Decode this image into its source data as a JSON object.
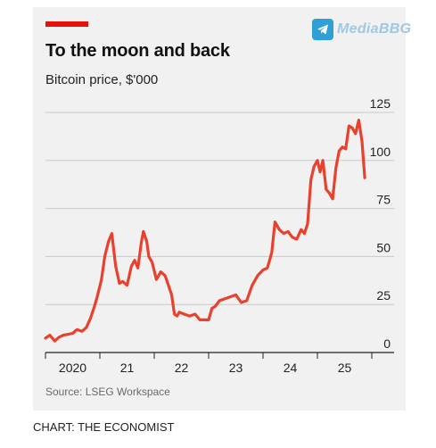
{
  "watermark": {
    "text": "MediaBBG",
    "icon": "telegram-icon"
  },
  "chart_data": {
    "type": "line",
    "title": "To the moon and back",
    "subtitle": "Bitcoin price, $'000",
    "source": "Source: LSEG Workspace",
    "xlabel": "",
    "ylabel": "",
    "x_tick_labels": [
      "2020",
      "21",
      "22",
      "23",
      "24",
      "25"
    ],
    "y_ticks": [
      0,
      25,
      50,
      75,
      100,
      125
    ],
    "ylim": [
      0,
      125
    ],
    "xlim": [
      2020.0,
      2026.0
    ],
    "grid": true,
    "series": [
      {
        "color": "#e8412e",
        "x": [
          2020.0,
          2020.08,
          2020.17,
          2020.25,
          2020.33,
          2020.42,
          2020.5,
          2020.58,
          2020.67,
          2020.75,
          2020.83,
          2020.9,
          2020.96,
          2021.03,
          2021.09,
          2021.16,
          2021.22,
          2021.29,
          2021.36,
          2021.42,
          2021.5,
          2021.58,
          2021.64,
          2021.7,
          2021.76,
          2021.8,
          2021.86,
          2021.9,
          2021.96,
          2022.04,
          2022.12,
          2022.2,
          2022.26,
          2022.32,
          2022.37,
          2022.42,
          2022.46,
          2022.55,
          2022.65,
          2022.75,
          2022.84,
          2022.92,
          2023.0,
          2023.06,
          2023.12,
          2023.2,
          2023.3,
          2023.4,
          2023.5,
          2023.6,
          2023.7,
          2023.8,
          2023.9,
          2024.0,
          2024.08,
          2024.16,
          2024.22,
          2024.3,
          2024.38,
          2024.46,
          2024.54,
          2024.62,
          2024.7,
          2024.76,
          2024.82,
          2024.88,
          2024.94,
          2025.0,
          2025.05,
          2025.1,
          2025.16,
          2025.22,
          2025.28,
          2025.34,
          2025.4,
          2025.46,
          2025.52,
          2025.58,
          2025.64,
          2025.7,
          2025.76,
          2025.82,
          2025.87
        ],
        "values": [
          7.5,
          9,
          6,
          8,
          9,
          9.5,
          10,
          12,
          11,
          13,
          18,
          24,
          30,
          38,
          50,
          58,
          62,
          45,
          36,
          37,
          35,
          45,
          48,
          44,
          57,
          63,
          58,
          50,
          47,
          38,
          42,
          40,
          35,
          30,
          20,
          19,
          21,
          20,
          19,
          20,
          17,
          17,
          17,
          23,
          24,
          27,
          28,
          29,
          30,
          26,
          27,
          35,
          40,
          43,
          44,
          52,
          68,
          64,
          62,
          63,
          60,
          59,
          64,
          62,
          67,
          90,
          97,
          100,
          94,
          100,
          85,
          83,
          80,
          96,
          105,
          107,
          106,
          118,
          117,
          114,
          121,
          110,
          91
        ]
      }
    ]
  },
  "credit": "CHART: THE ECONOMIST"
}
